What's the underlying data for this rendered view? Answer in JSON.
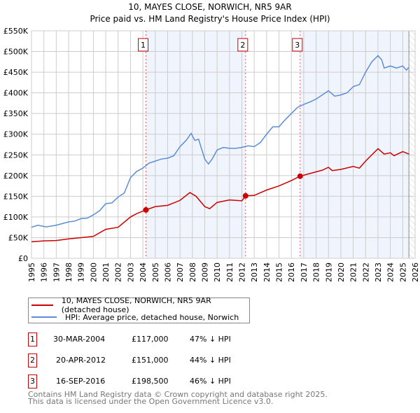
{
  "chart_data": {
    "type": "line",
    "title": "10, MAYES CLOSE, NORWICH, NR5 9AR",
    "subtitle": "Price paid vs. HM Land Registry's House Price Index (HPI)",
    "xlim": [
      1995,
      2026
    ],
    "ylim": [
      0,
      550000
    ],
    "x_ticks": [
      "1995",
      "1996",
      "1997",
      "1998",
      "1999",
      "2000",
      "2001",
      "2002",
      "2003",
      "2004",
      "2005",
      "2006",
      "2007",
      "2008",
      "2009",
      "2010",
      "2011",
      "2012",
      "2013",
      "2014",
      "2015",
      "2016",
      "2017",
      "2018",
      "2019",
      "2020",
      "2021",
      "2022",
      "2023",
      "2024",
      "2025",
      "2026"
    ],
    "y_ticks": [
      {
        "v": 0,
        "label": "£0"
      },
      {
        "v": 50000,
        "label": "£50K"
      },
      {
        "v": 100000,
        "label": "£100K"
      },
      {
        "v": 150000,
        "label": "£150K"
      },
      {
        "v": 200000,
        "label": "£200K"
      },
      {
        "v": 250000,
        "label": "£250K"
      },
      {
        "v": 300000,
        "label": "£300K"
      },
      {
        "v": 350000,
        "label": "£350K"
      },
      {
        "v": 400000,
        "label": "£400K"
      },
      {
        "v": 450000,
        "label": "£450K"
      },
      {
        "v": 500000,
        "label": "£500K"
      },
      {
        "v": 550000,
        "label": "£550K"
      }
    ],
    "grid": true,
    "series": [
      {
        "name": "10, MAYES CLOSE, NORWICH, NR5 9AR (detached house)",
        "color": "#cc0000",
        "x": [
          1995,
          1996,
          1997,
          1998,
          1999,
          2000,
          2001,
          2002,
          2003,
          2003.5,
          2004.25,
          2005,
          2006,
          2007,
          2007.8,
          2008.3,
          2009,
          2009.4,
          2010,
          2011,
          2012,
          2012.3,
          2013,
          2014,
          2015,
          2016,
          2016.7,
          2017.5,
          2018.5,
          2019,
          2019.3,
          2020,
          2021,
          2021.5,
          2022,
          2022.5,
          2023,
          2023.5,
          2024,
          2024.3,
          2025,
          2025.5
        ],
        "y": [
          40000,
          42000,
          43000,
          47000,
          50000,
          53000,
          70000,
          75000,
          100000,
          108000,
          117000,
          125000,
          128000,
          140000,
          159000,
          150000,
          125000,
          120000,
          135000,
          141000,
          139000,
          151000,
          152000,
          165000,
          175000,
          188000,
          198500,
          205000,
          213000,
          220000,
          212000,
          215000,
          222000,
          218000,
          235000,
          250000,
          265000,
          252000,
          255000,
          248000,
          258000,
          252000
        ]
      },
      {
        "name": "HPI: Average price, detached house, Norwich",
        "color": "#5b8ed6",
        "x": [
          1995,
          1995.5,
          1996.2,
          1997,
          1998,
          1998.5,
          1999,
          1999.5,
          2000,
          2000.5,
          2001,
          2001.5,
          2002,
          2002.5,
          2003,
          2003.5,
          2004,
          2004.5,
          2005,
          2005.5,
          2006,
          2006.5,
          2007,
          2007.5,
          2007.9,
          2008.2,
          2008.5,
          2009,
          2009.3,
          2009.6,
          2010,
          2010.5,
          2011,
          2011.5,
          2012,
          2012.5,
          2013,
          2013.5,
          2014,
          2014.5,
          2015,
          2015.5,
          2016,
          2016.5,
          2017,
          2017.5,
          2018,
          2018.5,
          2019,
          2019.5,
          2020,
          2020.5,
          2021,
          2021.5,
          2022,
          2022.5,
          2023,
          2023.3,
          2023.5,
          2024,
          2024.5,
          2025,
          2025.3,
          2025.5
        ],
        "y": [
          75000,
          80000,
          76000,
          80000,
          88000,
          90000,
          96000,
          97000,
          105000,
          115000,
          132000,
          134000,
          148000,
          158000,
          195000,
          210000,
          218000,
          230000,
          235000,
          240000,
          242000,
          248000,
          270000,
          285000,
          302000,
          285000,
          288000,
          240000,
          228000,
          240000,
          262000,
          268000,
          266000,
          266000,
          268000,
          272000,
          270000,
          280000,
          300000,
          318000,
          318000,
          335000,
          350000,
          365000,
          372000,
          378000,
          385000,
          395000,
          405000,
          392000,
          395000,
          400000,
          415000,
          420000,
          450000,
          475000,
          490000,
          480000,
          460000,
          465000,
          460000,
          465000,
          455000,
          462000
        ]
      }
    ],
    "sales": [
      {
        "num": "1",
        "x": 2004.25,
        "price": 117000,
        "date": "30-MAR-2004",
        "price_label": "£117,000",
        "hpi": "47% ↓ HPI"
      },
      {
        "num": "2",
        "x": 2012.3,
        "price": 151000,
        "date": "20-APR-2012",
        "price_label": "£151,000",
        "hpi": "44% ↓ HPI"
      },
      {
        "num": "3",
        "x": 2016.71,
        "price": 198500,
        "date": "16-SEP-2016",
        "price_label": "£198,500",
        "hpi": "46% ↓ HPI"
      }
    ],
    "shaded_ranges": [
      [
        2004.25,
        2012.3
      ],
      [
        2016.71,
        2025.5
      ]
    ],
    "forecast_from": 2025.5
  },
  "legend": {
    "series1": "10, MAYES CLOSE, NORWICH, NR5 9AR (detached house)",
    "series2": "HPI: Average price, detached house, Norwich"
  },
  "footer": {
    "line1": "Contains HM Land Registry data © Crown copyright and database right 2025.",
    "line2": "This data is licensed under the Open Government Licence v3.0."
  }
}
